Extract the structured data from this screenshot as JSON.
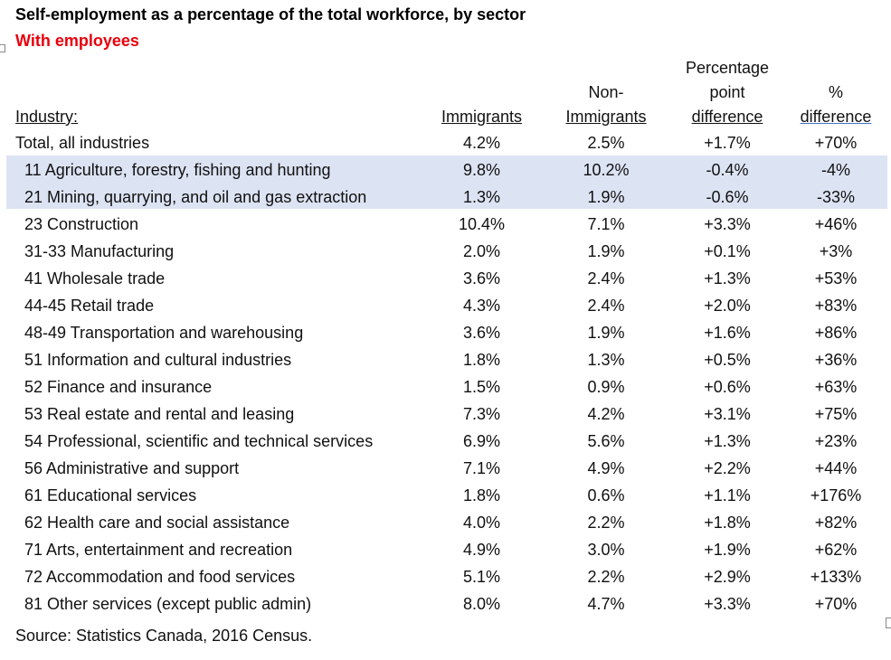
{
  "title": "Self-employment as a percentage of the total workforce, by sector",
  "subtitle": "With employees",
  "headers": {
    "industry": "Industry:",
    "immigrants": "Immigrants",
    "non_line1": "Non-",
    "non_line2": "Immigrants",
    "ppd_line1": "Percentage",
    "ppd_line2": "point",
    "ppd_line3": "difference",
    "pct_line1": "%",
    "pct_line2": "difference"
  },
  "rows": [
    {
      "industry": "Total, all industries",
      "immigrants": "4.2%",
      "non_immigrants": "2.5%",
      "pp_diff": "+1.7%",
      "pct_diff": "+70%"
    },
    {
      "industry": "11 Agriculture, forestry, fishing and hunting",
      "immigrants": "9.8%",
      "non_immigrants": "10.2%",
      "pp_diff": "-0.4%",
      "pct_diff": "-4%"
    },
    {
      "industry": "21 Mining, quarrying, and oil and gas extraction",
      "immigrants": "1.3%",
      "non_immigrants": "1.9%",
      "pp_diff": "-0.6%",
      "pct_diff": "-33%"
    },
    {
      "industry": "23 Construction",
      "immigrants": "10.4%",
      "non_immigrants": "7.1%",
      "pp_diff": "+3.3%",
      "pct_diff": "+46%"
    },
    {
      "industry": "31-33 Manufacturing",
      "immigrants": "2.0%",
      "non_immigrants": "1.9%",
      "pp_diff": "+0.1%",
      "pct_diff": "+3%"
    },
    {
      "industry": "41 Wholesale trade",
      "immigrants": "3.6%",
      "non_immigrants": "2.4%",
      "pp_diff": "+1.3%",
      "pct_diff": "+53%"
    },
    {
      "industry": "44-45 Retail trade",
      "immigrants": "4.3%",
      "non_immigrants": "2.4%",
      "pp_diff": "+2.0%",
      "pct_diff": "+83%"
    },
    {
      "industry": "48-49 Transportation and warehousing",
      "immigrants": "3.6%",
      "non_immigrants": "1.9%",
      "pp_diff": "+1.6%",
      "pct_diff": "+86%"
    },
    {
      "industry": "51 Information and cultural industries",
      "immigrants": "1.8%",
      "non_immigrants": "1.3%",
      "pp_diff": "+0.5%",
      "pct_diff": "+36%"
    },
    {
      "industry": "52 Finance and insurance",
      "immigrants": "1.5%",
      "non_immigrants": "0.9%",
      "pp_diff": "+0.6%",
      "pct_diff": "+63%"
    },
    {
      "industry": "53 Real estate and rental and leasing",
      "immigrants": "7.3%",
      "non_immigrants": "4.2%",
      "pp_diff": "+3.1%",
      "pct_diff": "+75%"
    },
    {
      "industry": "54 Professional, scientific and technical services",
      "immigrants": "6.9%",
      "non_immigrants": "5.6%",
      "pp_diff": "+1.3%",
      "pct_diff": "+23%"
    },
    {
      "industry": "56 Administrative and support",
      "immigrants": "7.1%",
      "non_immigrants": "4.9%",
      "pp_diff": "+2.2%",
      "pct_diff": "+44%"
    },
    {
      "industry": "61 Educational services",
      "immigrants": "1.8%",
      "non_immigrants": "0.6%",
      "pp_diff": "+1.1%",
      "pct_diff": "+176%"
    },
    {
      "industry": "62 Health care and social assistance",
      "immigrants": "4.0%",
      "non_immigrants": "2.2%",
      "pp_diff": "+1.8%",
      "pct_diff": "+82%"
    },
    {
      "industry": "71 Arts, entertainment and recreation",
      "immigrants": "4.9%",
      "non_immigrants": "3.0%",
      "pp_diff": "+1.9%",
      "pct_diff": "+62%"
    },
    {
      "industry": "72 Accommodation and food services",
      "immigrants": "5.1%",
      "non_immigrants": "2.2%",
      "pp_diff": "+2.9%",
      "pct_diff": "+133%"
    },
    {
      "industry": "81 Other services (except public admin)",
      "immigrants": "8.0%",
      "non_immigrants": "4.7%",
      "pp_diff": "+3.3%",
      "pct_diff": "+70%"
    }
  ],
  "source": "Source: Statistics Canada, 2016 Census.",
  "colors": {
    "subtitle": "#e8000b",
    "selection": "#dce3f3"
  }
}
